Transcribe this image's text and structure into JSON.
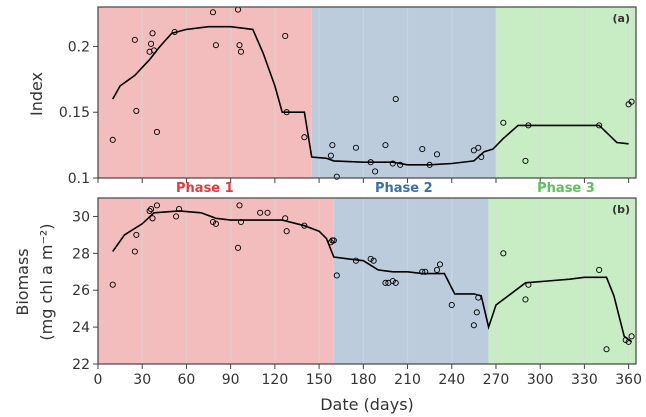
{
  "chart_data": [
    {
      "panel": "a",
      "panel_tag": "(a)",
      "type": "line",
      "ylabel": "Index",
      "xlim": [
        0,
        365
      ],
      "ylim": [
        0.1,
        0.23
      ],
      "yticks": [
        0.1,
        0.15,
        0.2
      ],
      "ytick_labels": [
        "0.1",
        "0.15",
        "0.2"
      ],
      "grid": true,
      "phases": [
        {
          "name": "Phase 1",
          "x_start": 0,
          "x_end": 145,
          "color": "#f4bdbd",
          "label_color": "#e03a3a"
        },
        {
          "name": "Phase 2",
          "x_start": 145,
          "x_end": 270,
          "color": "#bdccdd",
          "label_color": "#3a6fa8"
        },
        {
          "name": "Phase 3",
          "x_start": 270,
          "x_end": 365,
          "color": "#c8ecc3",
          "label_color": "#5cc25c"
        }
      ],
      "series": [
        {
          "kind": "line",
          "points": [
            [
              10,
              0.16
            ],
            [
              15,
              0.17
            ],
            [
              25,
              0.178
            ],
            [
              35,
              0.19
            ],
            [
              42,
              0.2
            ],
            [
              50,
              0.21
            ],
            [
              60,
              0.213
            ],
            [
              75,
              0.215
            ],
            [
              90,
              0.215
            ],
            [
              105,
              0.213
            ],
            [
              112,
              0.195
            ],
            [
              120,
              0.17
            ],
            [
              125,
              0.15
            ],
            [
              140,
              0.15
            ],
            [
              145,
              0.116
            ],
            [
              155,
              0.115
            ],
            [
              160,
              0.113
            ],
            [
              180,
              0.112
            ],
            [
              200,
              0.112
            ],
            [
              210,
              0.11
            ],
            [
              225,
              0.11
            ],
            [
              240,
              0.111
            ],
            [
              255,
              0.113
            ],
            [
              262,
              0.12
            ],
            [
              268,
              0.122
            ],
            [
              275,
              0.13
            ],
            [
              285,
              0.14
            ],
            [
              300,
              0.14
            ],
            [
              340,
              0.14
            ],
            [
              352,
              0.127
            ],
            [
              360,
              0.126
            ]
          ]
        },
        {
          "kind": "scatter",
          "points": [
            [
              10,
              0.129
            ],
            [
              25,
              0.205
            ],
            [
              26,
              0.151
            ],
            [
              35,
              0.196
            ],
            [
              36,
              0.202
            ],
            [
              37,
              0.21
            ],
            [
              38,
              0.197
            ],
            [
              40,
              0.135
            ],
            [
              52,
              0.211
            ],
            [
              78,
              0.226
            ],
            [
              80,
              0.201
            ],
            [
              95,
              0.228
            ],
            [
              96,
              0.201
            ],
            [
              97,
              0.196
            ],
            [
              127,
              0.208
            ],
            [
              128,
              0.15
            ],
            [
              140,
              0.131
            ],
            [
              158,
              0.117
            ],
            [
              159,
              0.125
            ],
            [
              162,
              0.101
            ],
            [
              175,
              0.123
            ],
            [
              185,
              0.112
            ],
            [
              188,
              0.105
            ],
            [
              195,
              0.125
            ],
            [
              200,
              0.111
            ],
            [
              202,
              0.16
            ],
            [
              205,
              0.11
            ],
            [
              220,
              0.122
            ],
            [
              225,
              0.11
            ],
            [
              230,
              0.118
            ],
            [
              255,
              0.121
            ],
            [
              258,
              0.123
            ],
            [
              260,
              0.116
            ],
            [
              275,
              0.142
            ],
            [
              290,
              0.113
            ],
            [
              292,
              0.14
            ],
            [
              340,
              0.14
            ],
            [
              360,
              0.156
            ],
            [
              362,
              0.158
            ]
          ]
        }
      ]
    },
    {
      "panel": "b",
      "panel_tag": "(b)",
      "type": "line",
      "ylabel": "Biomass",
      "ylabel_units": "(mg chl a m⁻²)",
      "xlabel": "Date (days)",
      "xlim": [
        0,
        365
      ],
      "ylim": [
        22,
        31
      ],
      "yticks": [
        22,
        24,
        26,
        28,
        30
      ],
      "ytick_labels": [
        "22",
        "24",
        "26",
        "28",
        "30"
      ],
      "xticks": [
        0,
        30,
        60,
        90,
        120,
        150,
        180,
        210,
        240,
        270,
        300,
        330,
        360
      ],
      "xtick_labels": [
        "0",
        "30",
        "60",
        "90",
        "120",
        "150",
        "180",
        "210",
        "240",
        "270",
        "300",
        "330",
        "360"
      ],
      "grid": true,
      "phases": [
        {
          "name": "Phase 1",
          "x_start": 0,
          "x_end": 160,
          "color": "#f4bdbd"
        },
        {
          "name": "Phase 2",
          "x_start": 160,
          "x_end": 265,
          "color": "#bdccdd"
        },
        {
          "name": "Phase 3",
          "x_start": 265,
          "x_end": 365,
          "color": "#c8ecc3"
        }
      ],
      "series": [
        {
          "kind": "line",
          "points": [
            [
              10,
              28.1
            ],
            [
              18,
              29.0
            ],
            [
              30,
              29.6
            ],
            [
              38,
              30.2
            ],
            [
              55,
              30.3
            ],
            [
              70,
              30.2
            ],
            [
              80,
              29.9
            ],
            [
              90,
              29.8
            ],
            [
              100,
              29.8
            ],
            [
              110,
              29.8
            ],
            [
              125,
              29.8
            ],
            [
              140,
              29.5
            ],
            [
              150,
              29.2
            ],
            [
              155,
              28.8
            ],
            [
              160,
              27.8
            ],
            [
              170,
              27.7
            ],
            [
              180,
              27.6
            ],
            [
              190,
              27.1
            ],
            [
              200,
              27.0
            ],
            [
              210,
              27.0
            ],
            [
              220,
              26.9
            ],
            [
              235,
              26.9
            ],
            [
              242,
              25.8
            ],
            [
              255,
              25.8
            ],
            [
              260,
              25.7
            ],
            [
              265,
              24.0
            ],
            [
              270,
              25.2
            ],
            [
              290,
              26.4
            ],
            [
              305,
              26.5
            ],
            [
              320,
              26.6
            ],
            [
              330,
              26.7
            ],
            [
              345,
              26.7
            ],
            [
              350,
              25.7
            ],
            [
              357,
              23.5
            ],
            [
              362,
              23.2
            ]
          ]
        },
        {
          "kind": "scatter",
          "points": [
            [
              10,
              26.3
            ],
            [
              25,
              28.1
            ],
            [
              26,
              29.0
            ],
            [
              35,
              30.3
            ],
            [
              36,
              30.4
            ],
            [
              37,
              29.9
            ],
            [
              40,
              30.6
            ],
            [
              53,
              30.0
            ],
            [
              55,
              30.4
            ],
            [
              78,
              29.7
            ],
            [
              80,
              29.6
            ],
            [
              95,
              28.3
            ],
            [
              96,
              30.6
            ],
            [
              97,
              29.7
            ],
            [
              110,
              30.2
            ],
            [
              115,
              30.2
            ],
            [
              127,
              29.9
            ],
            [
              128,
              29.2
            ],
            [
              140,
              29.5
            ],
            [
              158,
              28.6
            ],
            [
              159,
              28.7
            ],
            [
              160,
              28.7
            ],
            [
              162,
              26.8
            ],
            [
              175,
              27.6
            ],
            [
              185,
              27.7
            ],
            [
              187,
              27.6
            ],
            [
              195,
              26.4
            ],
            [
              197,
              26.4
            ],
            [
              200,
              26.5
            ],
            [
              202,
              26.4
            ],
            [
              220,
              27.0
            ],
            [
              222,
              27.0
            ],
            [
              230,
              27.1
            ],
            [
              232,
              27.4
            ],
            [
              240,
              25.2
            ],
            [
              255,
              24.1
            ],
            [
              257,
              24.8
            ],
            [
              258,
              25.6
            ],
            [
              275,
              28.0
            ],
            [
              290,
              25.5
            ],
            [
              292,
              26.3
            ],
            [
              340,
              27.1
            ],
            [
              345,
              22.8
            ],
            [
              358,
              23.3
            ],
            [
              360,
              23.2
            ],
            [
              362,
              23.5
            ]
          ]
        }
      ]
    }
  ]
}
